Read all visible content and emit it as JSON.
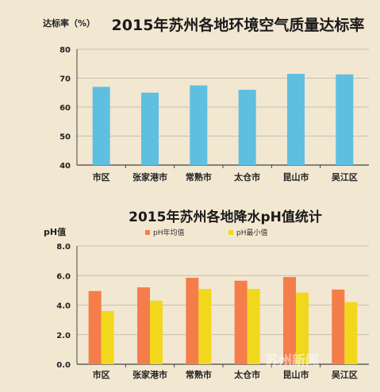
{
  "chart_data": [
    {
      "type": "bar",
      "title": "2015年苏州各地环境空气质量达标率",
      "ylabel": "达标率（%）",
      "xlabel": "",
      "categories": [
        "市区",
        "张家港市",
        "常熟市",
        "太仓市",
        "昆山市",
        "吴江区"
      ],
      "values": [
        67,
        65,
        67.5,
        66,
        71.5,
        71.3
      ],
      "ylim": [
        40,
        80
      ],
      "yticks": [
        40,
        50,
        60,
        70,
        80
      ],
      "grid": true,
      "legend": "none",
      "colors": {
        "bar": "#5fbfe0"
      }
    },
    {
      "type": "bar",
      "title": "2015年苏州各地降水pH值统计",
      "ylabel": "pH值",
      "xlabel": "",
      "categories": [
        "市区",
        "张家港市",
        "常熟市",
        "太仓市",
        "昆山市",
        "吴江区"
      ],
      "series": [
        {
          "name": "pH年均值",
          "values": [
            4.95,
            5.2,
            5.85,
            5.65,
            5.9,
            5.05
          ],
          "color": "#f47d4a"
        },
        {
          "name": "pH最小值",
          "values": [
            3.6,
            4.3,
            5.1,
            5.1,
            4.85,
            4.2
          ],
          "color": "#f2d81c"
        }
      ],
      "ylim": [
        0,
        8
      ],
      "yticks": [
        "0.0",
        "2.0",
        "4.0",
        "6.0",
        "8.0"
      ],
      "grid": true,
      "legend": "top-center"
    }
  ],
  "watermark": {
    "text": "苏州新闻"
  }
}
